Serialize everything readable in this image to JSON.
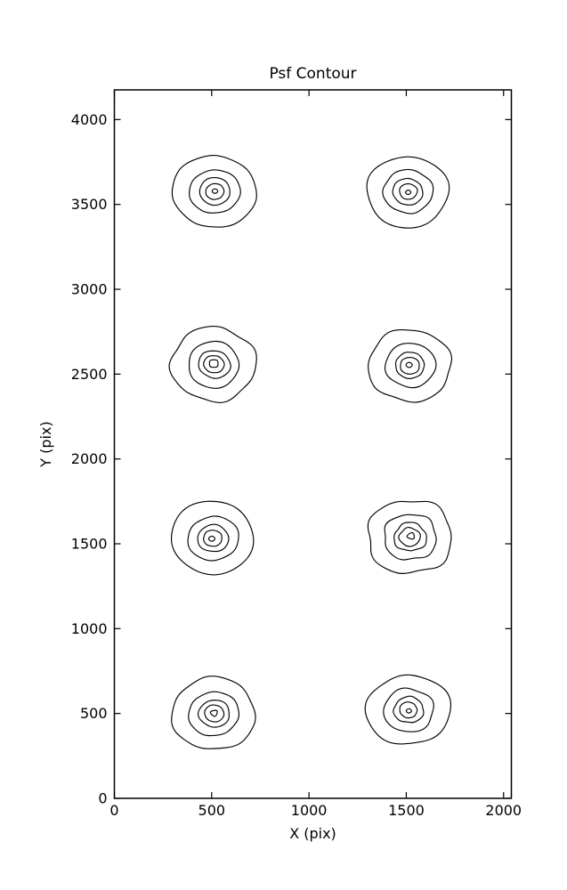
{
  "figure": {
    "background": "#ffffff",
    "line_color": "#000000"
  },
  "chart_data": {
    "type": "contour",
    "title": "Psf Contour",
    "xlabel": "X (pix)",
    "ylabel": "Y (pix)",
    "xlim": [
      0,
      2040
    ],
    "ylim": [
      0,
      4175
    ],
    "xticks": [
      0,
      500,
      1000,
      1500,
      2000
    ],
    "yticks": [
      0,
      500,
      1000,
      1500,
      2000,
      2500,
      3000,
      3500,
      4000
    ],
    "grid": false,
    "legend": "none",
    "contour_levels": 5,
    "blobs": [
      {
        "x": 516,
        "y": 3576,
        "radii": [
          215,
          130,
          80,
          47,
          17
        ],
        "inner": "diamond",
        "wobble": 0.025,
        "seed": 11
      },
      {
        "x": 1509,
        "y": 3576,
        "radii": [
          211,
          128,
          78,
          46,
          16
        ],
        "inner": "diamond",
        "wobble": 0.03,
        "seed": 23
      },
      {
        "x": 512,
        "y": 2557,
        "radii": [
          219,
          134,
          82,
          52,
          24
        ],
        "inner": "square",
        "wobble": 0.035,
        "seed": 37
      },
      {
        "x": 1520,
        "y": 2551,
        "radii": [
          214,
          130,
          76,
          50,
          19
        ],
        "inner": "diamond",
        "wobble": 0.03,
        "seed": 41
      },
      {
        "x": 506,
        "y": 1534,
        "radii": [
          215,
          131,
          80,
          48,
          19
        ],
        "inner": "diamond",
        "wobble": 0.028,
        "seed": 53
      },
      {
        "x": 1520,
        "y": 1540,
        "radii": [
          220,
          137,
          84,
          54,
          21
        ],
        "inner": "triangle",
        "wobble": 0.05,
        "seed": 67
      },
      {
        "x": 512,
        "y": 499,
        "radii": [
          215,
          130,
          80,
          50,
          20
        ],
        "inner": "triangle",
        "wobble": 0.03,
        "seed": 71
      },
      {
        "x": 1513,
        "y": 519,
        "radii": [
          212,
          129,
          77,
          46,
          16
        ],
        "inner": "diamond",
        "wobble": 0.04,
        "seed": 83
      }
    ]
  }
}
